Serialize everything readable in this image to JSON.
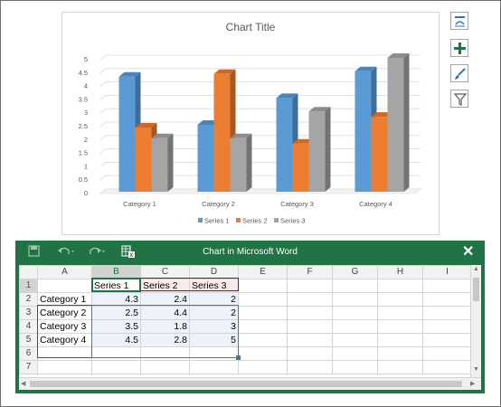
{
  "chart": {
    "title": "Chart Title",
    "side_buttons": [
      "layout-options",
      "chart-elements",
      "chart-styles",
      "chart-filters"
    ]
  },
  "chart_data": {
    "type": "bar",
    "title": "Chart Title",
    "categories": [
      "Category 1",
      "Category 2",
      "Category 3",
      "Category 4"
    ],
    "series": [
      {
        "name": "Series 1",
        "values": [
          4.3,
          2.5,
          3.5,
          4.5
        ],
        "color": "#5b9bd5"
      },
      {
        "name": "Series 2",
        "values": [
          2.4,
          4.4,
          1.8,
          2.8
        ],
        "color": "#ed7d31"
      },
      {
        "name": "Series 3",
        "values": [
          2,
          2,
          3,
          5
        ],
        "color": "#a5a5a5"
      }
    ],
    "yticks": [
      "0",
      "0.5",
      "1",
      "1.5",
      "2",
      "2.5",
      "3",
      "3.5",
      "4",
      "4.5",
      "5"
    ],
    "ylim": [
      0,
      5
    ],
    "grid": true,
    "legend": "bottom"
  },
  "window": {
    "title": "Chart in Microsoft Word",
    "close_label": "✕"
  },
  "sheet": {
    "columns": [
      "A",
      "B",
      "C",
      "D",
      "E",
      "F",
      "G",
      "H",
      "I"
    ],
    "rows": [
      [
        "",
        "Series 1",
        "Series 2",
        "Series 3",
        "",
        "",
        "",
        "",
        ""
      ],
      [
        "Category 1",
        "4.3",
        "2.4",
        "2",
        "",
        "",
        "",
        "",
        ""
      ],
      [
        "Category 2",
        "2.5",
        "4.4",
        "2",
        "",
        "",
        "",
        "",
        ""
      ],
      [
        "Category 3",
        "3.5",
        "1.8",
        "3",
        "",
        "",
        "",
        "",
        ""
      ],
      [
        "Category 4",
        "4.5",
        "2.8",
        "5",
        "",
        "",
        "",
        "",
        ""
      ],
      [
        "",
        "",
        "",
        "",
        "",
        "",
        "",
        "",
        ""
      ],
      [
        "",
        "",
        "",
        "",
        "",
        "",
        "",
        "",
        ""
      ]
    ],
    "row_numbers": [
      "1",
      "2",
      "3",
      "4",
      "5",
      "6",
      "7"
    ]
  }
}
